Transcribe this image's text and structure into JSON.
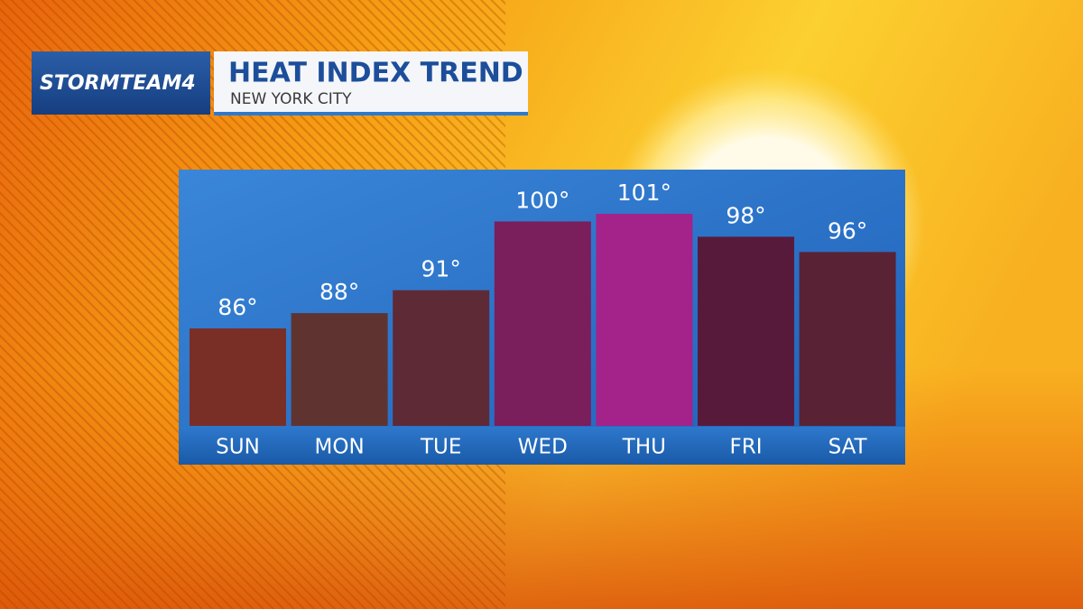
{
  "brand": "STORMTEAM4",
  "chart_data": {
    "type": "bar",
    "title": "HEAT INDEX TREND",
    "subtitle": "NEW YORK CITY",
    "categories": [
      "SUN",
      "MON",
      "TUE",
      "WED",
      "THU",
      "FRI",
      "SAT"
    ],
    "values": [
      86,
      88,
      91,
      100,
      101,
      98,
      96
    ],
    "value_labels": [
      "86°",
      "88°",
      "91°",
      "100°",
      "101°",
      "98°",
      "96°"
    ],
    "colors": [
      "#7a2f26",
      "#5f3430",
      "#5e2a36",
      "#7a1e5c",
      "#a3238b",
      "#581a3a",
      "#5a2235"
    ]
  }
}
